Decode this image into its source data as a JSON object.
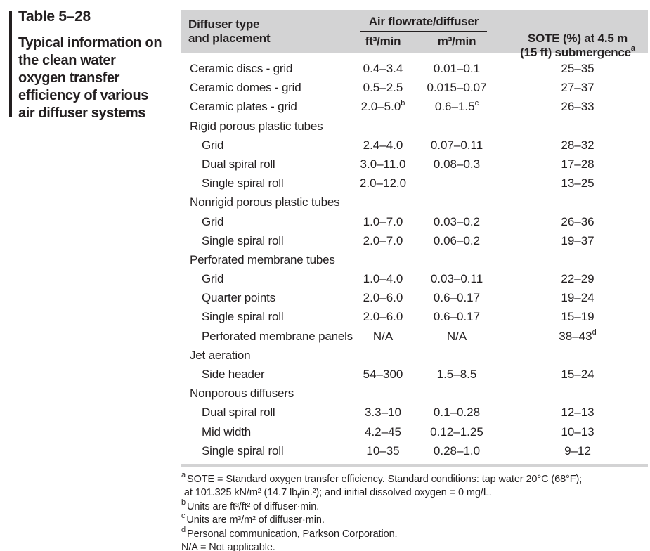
{
  "colors": {
    "text": "#231f20",
    "header_band": "#d3d3d4",
    "underline": "#231f20"
  },
  "sidebar": {
    "table_number": "Table 5–28",
    "caption": "Typical information on\nthe clean water\noxygen transfer\nefficiency of various\nair diffuser systems"
  },
  "table": {
    "header": {
      "col_type": "Diffuser type\nand placement",
      "flow_group": "Air flowrate/diffuser",
      "col_ft": "ft³/min",
      "col_m": "m³/min",
      "col_sote": "SOTE (%) at 4.5 m\n(15 ft) submergence",
      "col_sote_sup": "a"
    },
    "rows": [
      {
        "label": "Ceramic discs - grid",
        "indent": false,
        "ft3": "0.4–3.4",
        "m3": "0.01–0.1",
        "sote": "25–35"
      },
      {
        "label": "Ceramic domes - grid",
        "indent": false,
        "ft3": "0.5–2.5",
        "m3": "0.015–0.07",
        "sote": "27–37"
      },
      {
        "label": "Ceramic plates - grid",
        "indent": false,
        "ft3": "2.0–5.0",
        "ft3_sup": "b",
        "m3": "0.6–1.5",
        "m3_sup": "c",
        "sote": "26–33"
      },
      {
        "label": "Rigid porous plastic tubes",
        "category": true
      },
      {
        "label": "Grid",
        "indent": true,
        "ft3": "2.4–4.0",
        "m3": "0.07–0.11",
        "sote": "28–32"
      },
      {
        "label": "Dual spiral roll",
        "indent": true,
        "ft3": "3.0–11.0",
        "m3": "0.08–0.3",
        "sote": "17–28"
      },
      {
        "label": "Single spiral roll",
        "indent": true,
        "ft3": "2.0–12.0",
        "m3": "",
        "sote": "13–25"
      },
      {
        "label": "Nonrigid porous plastic tubes",
        "category": true
      },
      {
        "label": "Grid",
        "indent": true,
        "ft3": "1.0–7.0",
        "m3": "0.03–0.2",
        "sote": "26–36"
      },
      {
        "label": "Single spiral roll",
        "indent": true,
        "ft3": "2.0–7.0",
        "m3": "0.06–0.2",
        "sote": "19–37"
      },
      {
        "label": "Perforated membrane tubes",
        "category": true
      },
      {
        "label": "Grid",
        "indent": true,
        "ft3": "1.0–4.0",
        "m3": "0.03–0.11",
        "sote": "22–29"
      },
      {
        "label": "Quarter points",
        "indent": true,
        "ft3": "2.0–6.0",
        "m3": "0.6–0.17",
        "sote": "19–24"
      },
      {
        "label": "Single spiral roll",
        "indent": true,
        "ft3": "2.0–6.0",
        "m3": "0.6–0.17",
        "sote": "15–19"
      },
      {
        "label": "Perforated membrane panels",
        "indent": true,
        "ft3": "N/A",
        "m3": "N/A",
        "sote": "38–43",
        "sote_sup": "d"
      },
      {
        "label": "Jet aeration",
        "category": true
      },
      {
        "label": "Side header",
        "indent": true,
        "ft3": "54–300",
        "m3": "1.5–8.5",
        "sote": "15–24"
      },
      {
        "label": "Nonporous diffusers",
        "category": true
      },
      {
        "label": "Dual spiral roll",
        "indent": true,
        "ft3": "3.3–10",
        "m3": "0.1–0.28",
        "sote": "12–13"
      },
      {
        "label": "Mid width",
        "indent": true,
        "ft3": "4.2–45",
        "m3": "0.12–1.25",
        "sote": "10–13"
      },
      {
        "label": "Single spiral roll",
        "indent": true,
        "ft3": "10–35",
        "m3": "0.28–1.0",
        "sote": "9–12"
      }
    ],
    "footnotes": [
      {
        "marker": "a",
        "parts": [
          [
            "t",
            "SOTE = Standard oxygen transfer efficiency. Standard conditions: tap water 20°C (68°F);"
          ],
          [
            "br"
          ],
          [
            "t",
            " at 101.325 kN/m² (14.7 lb"
          ],
          [
            "sub",
            "f"
          ],
          [
            "t",
            "/in.²); and initial dissolved oxygen = 0 mg/L."
          ]
        ]
      },
      {
        "marker": "b",
        "parts": [
          [
            "t",
            "Units are ft³/ft² of diffuser·min."
          ]
        ]
      },
      {
        "marker": "c",
        "parts": [
          [
            "t",
            "Units are m³/m² of diffuser·min."
          ]
        ]
      },
      {
        "marker": "d",
        "parts": [
          [
            "t",
            "Personal communication, Parkson Corporation."
          ]
        ]
      },
      {
        "marker": "",
        "parts": [
          [
            "t",
            "N/A = Not applicable."
          ]
        ]
      }
    ]
  }
}
